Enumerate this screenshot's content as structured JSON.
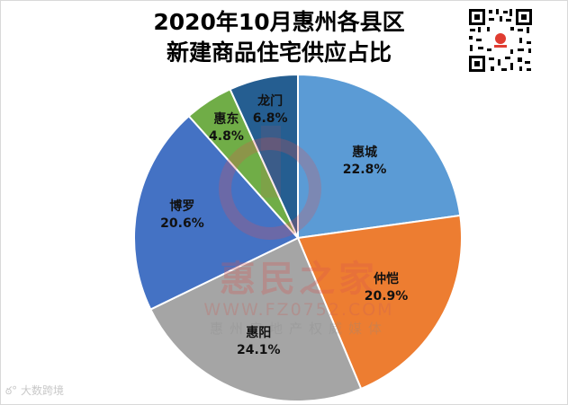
{
  "title": {
    "line1": "2020年10月惠州各县区",
    "line2": "新建商品住宅供应占比"
  },
  "watermark": {
    "brand": "惠民之家",
    "url": "WWW.FZ0752.COM",
    "tagline": "惠州房地产权威媒体"
  },
  "footer": {
    "icon": "weibo-icon",
    "text": "大数跨境"
  },
  "qr_code": {
    "icon": "qr-code-icon"
  },
  "chart_data": {
    "type": "pie",
    "title": "2020年10月惠州各县区新建商品住宅供应占比",
    "start_angle": "12 o'clock, clockwise",
    "categories": [
      "惠城",
      "仲恺",
      "惠阳",
      "博罗",
      "惠东",
      "龙门"
    ],
    "values": [
      22.8,
      20.9,
      24.1,
      20.6,
      4.8,
      6.8
    ],
    "labels": [
      "22.8%",
      "20.9%",
      "24.1%",
      "20.6%",
      "4.8%",
      "6.8%"
    ],
    "colors": [
      "#5b9bd5",
      "#ed7d31",
      "#a5a5a5",
      "#4472c4",
      "#70ad47",
      "#255e91"
    ],
    "legend": "none (data labels on slices)",
    "unit": "%"
  }
}
